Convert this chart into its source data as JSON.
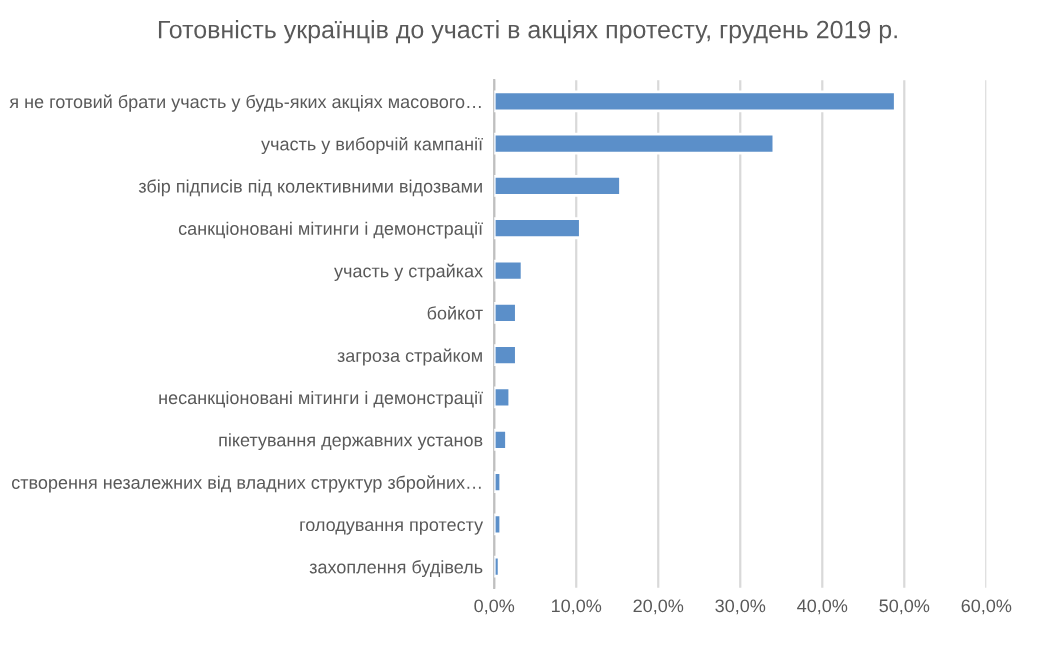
{
  "chart_data": {
    "type": "bar",
    "orientation": "horizontal",
    "title": "Готовність українців до участі в акціях протесту, грудень 2019 р.",
    "categories": [
      "я не готовий брати участь у будь-яких акціях масового…",
      "участь у виборчій кампанії",
      "збір підписів під колективними відозвами",
      "санкціоновані мітинги і демонстрації",
      "участь у страйках",
      "бойкот",
      "загроза страйком",
      "несанкціоновані мітинги і демонстрації",
      "пікетування державних установ",
      "створення незалежних від владних структур збройних…",
      "голодування протесту",
      "захоплення будівель"
    ],
    "values": [
      48.9,
      34.1,
      15.4,
      10.5,
      3.4,
      2.7,
      2.7,
      1.9,
      1.5,
      0.8,
      0.8,
      0.6
    ],
    "color": "#5b8fc9",
    "xlim": [
      0,
      60
    ],
    "xticks": [
      {
        "value": 0,
        "label": "0,0%"
      },
      {
        "value": 10,
        "label": "10,0%"
      },
      {
        "value": 20,
        "label": "20,0%"
      },
      {
        "value": 30,
        "label": "30,0%"
      },
      {
        "value": 40,
        "label": "40,0%"
      },
      {
        "value": 50,
        "label": "50,0%"
      },
      {
        "value": 60,
        "label": "60,0%"
      }
    ],
    "grid": "x",
    "legend": false
  }
}
